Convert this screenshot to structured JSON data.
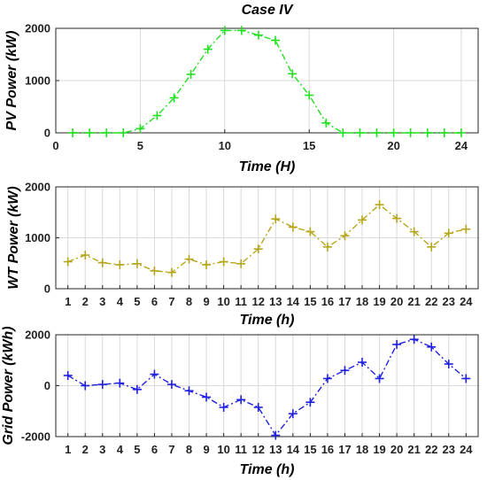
{
  "chart_data": [
    {
      "type": "line",
      "title": "Case IV",
      "xlabel": "Time (H)",
      "ylabel": "PV Power (kW)",
      "x": [
        1,
        2,
        3,
        4,
        5,
        6,
        7,
        8,
        9,
        10,
        11,
        12,
        13,
        14,
        15,
        16,
        17,
        18,
        19,
        20,
        21,
        22,
        23,
        24
      ],
      "xlim": [
        0,
        25
      ],
      "xticks": [
        0,
        5,
        10,
        15,
        20,
        24
      ],
      "ylim": [
        0,
        2000
      ],
      "yticks": [
        0,
        1000,
        2000
      ],
      "grid": true,
      "series": [
        {
          "color": "#22e022",
          "marker": "plus",
          "line_style": "dash-dot",
          "values": [
            0,
            0,
            0,
            0,
            80,
            330,
            670,
            1120,
            1600,
            1960,
            1960,
            1870,
            1770,
            1130,
            720,
            190,
            0,
            0,
            0,
            0,
            0,
            0,
            0,
            0
          ]
        }
      ]
    },
    {
      "type": "line",
      "xlabel": "Time (h)",
      "ylabel": "WT Power (kW)",
      "x": [
        1,
        2,
        3,
        4,
        5,
        6,
        7,
        8,
        9,
        10,
        11,
        12,
        13,
        14,
        15,
        16,
        17,
        18,
        19,
        20,
        21,
        22,
        23,
        24
      ],
      "xlim": [
        0.3,
        24.7
      ],
      "xticks": [
        1,
        2,
        3,
        4,
        5,
        6,
        7,
        8,
        9,
        10,
        11,
        12,
        13,
        14,
        15,
        16,
        17,
        18,
        19,
        20,
        21,
        22,
        23,
        24
      ],
      "ylim": [
        0,
        2000
      ],
      "yticks": [
        0,
        1000,
        2000
      ],
      "grid": true,
      "series": [
        {
          "color": "#b5a51a",
          "marker": "plus",
          "line_style": "dash-dot",
          "values": [
            530,
            660,
            510,
            470,
            490,
            350,
            320,
            580,
            470,
            530,
            490,
            780,
            1370,
            1210,
            1120,
            820,
            1040,
            1350,
            1650,
            1380,
            1120,
            820,
            1090,
            1170
          ]
        }
      ]
    },
    {
      "type": "line",
      "xlabel": "Time (h)",
      "ylabel": "Grid Power (kWh)",
      "x": [
        1,
        2,
        3,
        4,
        5,
        6,
        7,
        8,
        9,
        10,
        11,
        12,
        13,
        14,
        15,
        16,
        17,
        18,
        19,
        20,
        21,
        22,
        23,
        24
      ],
      "xlim": [
        0.3,
        24.7
      ],
      "xticks": [
        1,
        2,
        3,
        4,
        5,
        6,
        7,
        8,
        9,
        10,
        11,
        12,
        13,
        14,
        15,
        16,
        17,
        18,
        19,
        20,
        21,
        22,
        23,
        24
      ],
      "ylim": [
        -2000,
        2000
      ],
      "yticks": [
        -2000,
        0,
        2000
      ],
      "grid": true,
      "series": [
        {
          "color": "#1f1fe0",
          "marker": "plus",
          "line_style": "dash-dot",
          "values": [
            400,
            0,
            50,
            100,
            -150,
            450,
            50,
            -200,
            -450,
            -850,
            -550,
            -850,
            -1950,
            -1100,
            -650,
            280,
            600,
            920,
            280,
            1620,
            1820,
            1520,
            850,
            280
          ]
        }
      ]
    }
  ]
}
